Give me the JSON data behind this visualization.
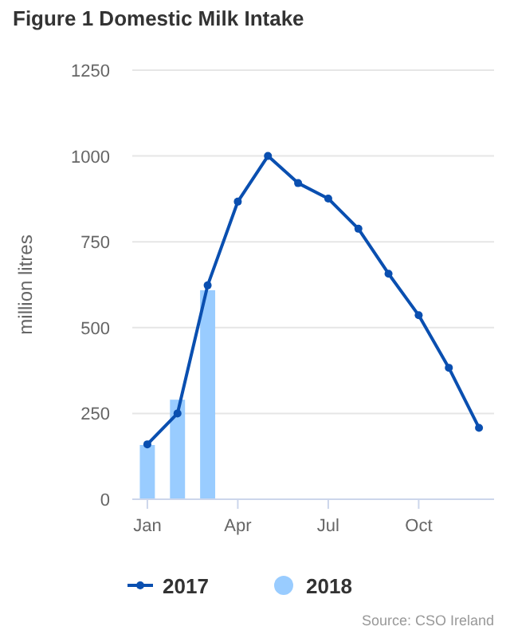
{
  "chart_data": {
    "type": "bar",
    "title": "Figure 1 Domestic Milk Intake",
    "ylabel": "million litres",
    "categories": [
      "Jan",
      null,
      null,
      "Apr",
      null,
      null,
      "Jul",
      null,
      null,
      "Oct",
      null,
      null
    ],
    "series": [
      {
        "name": "2017",
        "type": "line",
        "color": "#0a4fb0",
        "values": [
          160,
          250,
          623,
          867,
          1000,
          921,
          876,
          788,
          657,
          536,
          383,
          208
        ]
      },
      {
        "name": "2018",
        "color": "#99ccff",
        "values": [
          158,
          290,
          609,
          null,
          null,
          null,
          null,
          null,
          null,
          null,
          null,
          null
        ]
      }
    ],
    "ylim": [
      0,
      1250
    ],
    "yticks": [
      0,
      250,
      500,
      750,
      1000,
      1250
    ],
    "grid": "y",
    "legend": "bottom",
    "marker": "circle",
    "annotations": [
      "Source: CSO Ireland"
    ]
  }
}
